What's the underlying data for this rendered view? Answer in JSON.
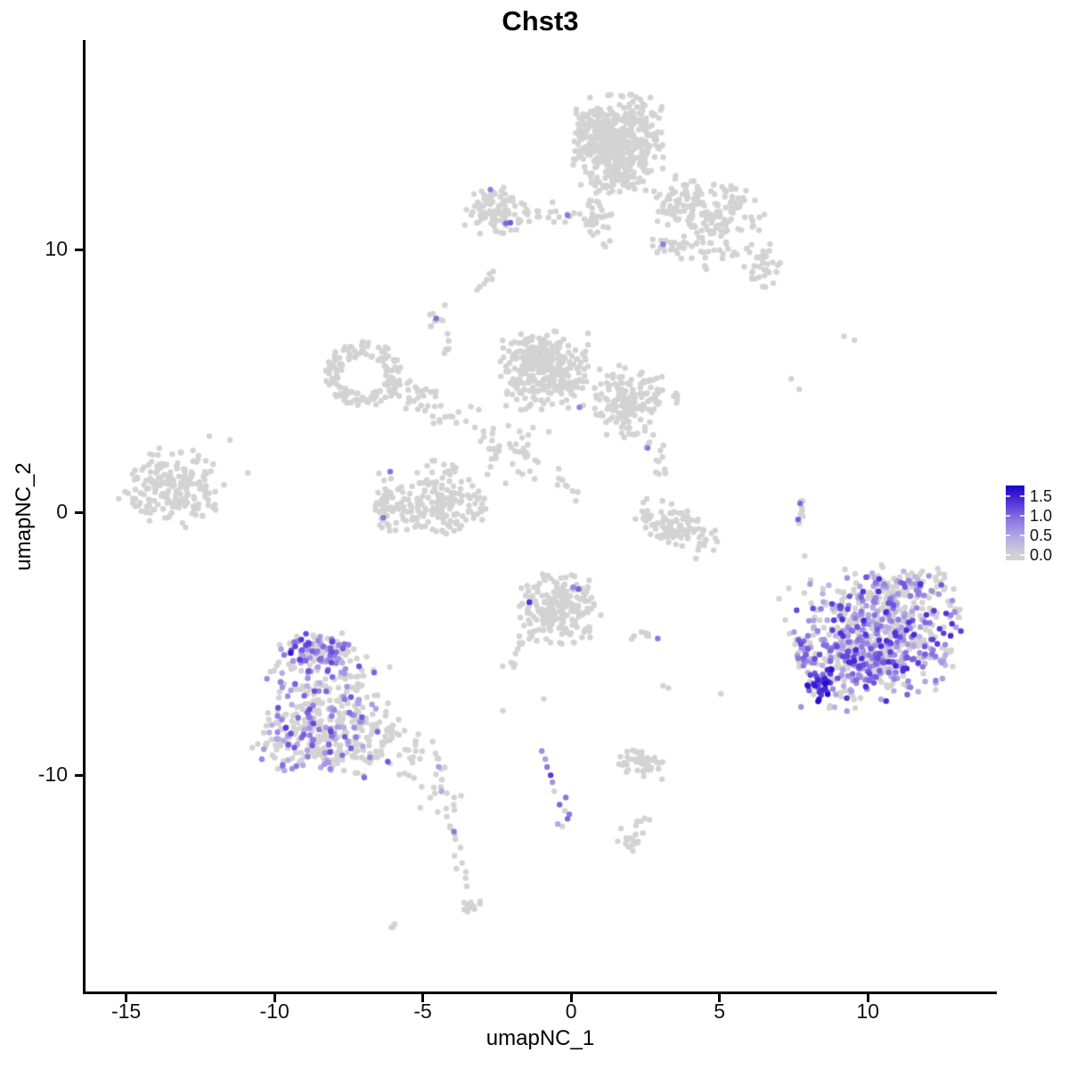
{
  "chart_data": {
    "type": "scatter",
    "title": "Chst3",
    "xlabel": "umapNC_1",
    "ylabel": "umapNC_2",
    "xlim": [
      -16.4,
      14.32
    ],
    "ylim": [
      -18.3,
      17.97
    ],
    "xticks": [
      -15,
      -10,
      -5,
      0,
      5,
      10
    ],
    "yticks": [
      -10,
      0,
      10
    ],
    "grid": false,
    "point_radius_px": 3.2,
    "seed": 7,
    "color_scale": {
      "zero_color": "#D3D3D3",
      "domain_max": 1.8,
      "stops": [
        {
          "t": 0.0,
          "c": "#D3D3D3"
        },
        {
          "t": 0.25,
          "c": "#B2A8E6"
        },
        {
          "t": 0.5,
          "c": "#8C78E0"
        },
        {
          "t": 0.75,
          "c": "#5331DA"
        },
        {
          "t": 1.0,
          "c": "#1400C8"
        }
      ]
    },
    "legend": {
      "ticks": [
        1.5,
        1.0,
        0.5,
        0.0
      ],
      "bar_range": [
        -0.14,
        1.77
      ]
    },
    "clusters": [
      {
        "name": "top-main",
        "cx": 1.62,
        "cy": 14.0,
        "rx": 1.55,
        "ry": 1.9,
        "rot": 0,
        "n": 430
      },
      {
        "name": "top-main-left",
        "cx": 0.9,
        "cy": 14.4,
        "rx": 0.8,
        "ry": 1.1,
        "rot": 0,
        "n": 80
      },
      {
        "name": "top-neck",
        "cx": 0.95,
        "cy": 11.3,
        "rx": 0.5,
        "ry": 1.2,
        "rot": 0,
        "n": 40
      },
      {
        "name": "top-right-arm",
        "cx": 4.6,
        "cy": 11.5,
        "rx": 1.95,
        "ry": 1.15,
        "rot": -15,
        "n": 165
      },
      {
        "name": "top-arm-tip",
        "cx": 6.4,
        "cy": 9.4,
        "rx": 0.65,
        "ry": 0.9,
        "rot": 0,
        "n": 35
      },
      {
        "name": "top-arm-under",
        "cx": 4.3,
        "cy": 10.1,
        "rx": 1.4,
        "ry": 0.8,
        "rot": -10,
        "n": 40
      },
      {
        "name": "topleft-small",
        "cx": -2.5,
        "cy": 11.5,
        "rx": 1.2,
        "ry": 0.95,
        "rot": 0,
        "n": 95
      },
      {
        "name": "topleft-y-clump",
        "cx": 3.05,
        "cy": 10.1,
        "rx": 0.45,
        "ry": 0.35,
        "rot": 0,
        "n": 10
      },
      {
        "name": "mid-tiny-clump",
        "cx": -4.55,
        "cy": 7.4,
        "rx": 0.35,
        "ry": 0.5,
        "rot": 0,
        "n": 9
      },
      {
        "name": "mid-tiny-strip",
        "cx": -4.25,
        "cy": 6.3,
        "rx": 0.18,
        "ry": 0.5,
        "rot": 0,
        "n": 6
      },
      {
        "name": "mid-left-ring",
        "cx": -7.0,
        "cy": 5.25,
        "rx": 1.35,
        "ry": 1.25,
        "rot": 0,
        "n": 140,
        "ring": 1
      },
      {
        "name": "mid-center",
        "cx": -0.85,
        "cy": 5.4,
        "rx": 1.6,
        "ry": 1.5,
        "rot": 0,
        "n": 260
      },
      {
        "name": "mid-center-top",
        "cx": -1.1,
        "cy": 6.1,
        "rx": 0.9,
        "ry": 0.7,
        "rot": 0,
        "n": 70
      },
      {
        "name": "mid-right-lobe",
        "cx": 2.0,
        "cy": 4.2,
        "rx": 1.25,
        "ry": 1.4,
        "rot": 0,
        "n": 165
      },
      {
        "name": "mid-scatter",
        "cx": -1.9,
        "cy": 2.2,
        "rx": 1.4,
        "ry": 1.3,
        "rot": 0,
        "n": 26
      },
      {
        "name": "mid-bowl",
        "cx": -4.6,
        "cy": 0.2,
        "rx": 1.8,
        "ry": 1.1,
        "rot": 5,
        "n": 165
      },
      {
        "name": "mid-bowl-hook",
        "cx": -6.3,
        "cy": 0.45,
        "rx": 0.35,
        "ry": 1.2,
        "rot": 0,
        "n": 38
      },
      {
        "name": "mid-bowl-inner",
        "cx": -4.3,
        "cy": 1.6,
        "rx": 1.0,
        "ry": 0.7,
        "rot": 0,
        "n": 18
      },
      {
        "name": "mid-crescent-se",
        "cx": 3.6,
        "cy": -0.6,
        "rx": 1.55,
        "ry": 0.75,
        "rot": -30,
        "n": 105
      },
      {
        "name": "mid-right-dots",
        "cx": 3.3,
        "cy": 4.3,
        "rx": 0.6,
        "ry": 0.5,
        "rot": 0,
        "n": 9
      },
      {
        "name": "far-left",
        "cx": -13.5,
        "cy": 1.0,
        "rx": 1.75,
        "ry": 1.5,
        "rot": -10,
        "n": 200
      },
      {
        "name": "bottom-middle",
        "cx": -0.35,
        "cy": -3.65,
        "rx": 1.4,
        "ry": 1.45,
        "rot": 0,
        "n": 205
      },
      {
        "name": "bottom-mid-pair",
        "cx": 2.35,
        "cy": -4.75,
        "rx": 0.5,
        "ry": 0.22,
        "rot": 0,
        "n": 7
      },
      {
        "name": "purple-left-core",
        "cx": -8.25,
        "cy": -7.4,
        "rx": 2.2,
        "ry": 2.6,
        "rot": 0,
        "n": 320,
        "frac": 0.3,
        "vmin": 0.35,
        "vmax": 1.25
      },
      {
        "name": "purple-left-base",
        "cx": -8.3,
        "cy": -8.8,
        "rx": 2.5,
        "ry": 1.3,
        "rot": 0,
        "n": 140,
        "frac": 0.18,
        "vmin": 0.35,
        "vmax": 1.1
      },
      {
        "name": "purple-left-cap",
        "cx": -8.55,
        "cy": -5.3,
        "rx": 1.35,
        "ry": 0.8,
        "rot": 0,
        "n": 95,
        "frac": 0.55,
        "vmin": 0.5,
        "vmax": 1.3
      },
      {
        "name": "right-expr-core",
        "cx": 10.35,
        "cy": -4.6,
        "rx": 2.9,
        "ry": 2.65,
        "rot": 15,
        "n": 620,
        "frac": 0.52,
        "vmin": 0.3,
        "vmax": 1.45
      },
      {
        "name": "right-expr-dense",
        "cx": 9.6,
        "cy": -5.6,
        "rx": 1.2,
        "ry": 1.0,
        "rot": 0,
        "n": 90,
        "frac": 0.6,
        "vmin": 0.5,
        "vmax": 1.45
      },
      {
        "name": "right-expr-rim",
        "cx": 11.4,
        "cy": -2.8,
        "rx": 1.5,
        "ry": 0.65,
        "rot": 10,
        "n": 65,
        "frac": 0.18,
        "vmin": 0.3,
        "vmax": 0.9
      },
      {
        "name": "right-expr-dark",
        "cx": 8.45,
        "cy": -6.6,
        "rx": 0.6,
        "ry": 0.65,
        "rot": 0,
        "n": 30,
        "frac": 0.85,
        "vmin": 1.05,
        "vmax": 1.75
      },
      {
        "name": "right-expr-spur",
        "cx": 7.95,
        "cy": -5.3,
        "rx": 0.45,
        "ry": 0.75,
        "rot": 0,
        "n": 24,
        "frac": 0.5,
        "vmin": 0.4,
        "vmax": 1.2
      },
      {
        "name": "bottom-right-small",
        "cx": 2.3,
        "cy": -9.55,
        "rx": 0.9,
        "ry": 0.55,
        "rot": -5,
        "n": 50
      },
      {
        "name": "bottom-right-low",
        "cx": 2.05,
        "cy": -12.45,
        "rx": 0.5,
        "ry": 0.45,
        "rot": 0,
        "n": 16
      },
      {
        "name": "drip-end-blob",
        "cx": -3.45,
        "cy": -14.95,
        "rx": 0.4,
        "ry": 0.3,
        "rot": 0,
        "n": 14
      }
    ],
    "strands": [
      {
        "name": "topleft-bridge",
        "x1": -1.55,
        "y1": 11.45,
        "x2": 0.4,
        "y2": 11.25,
        "n": 18,
        "jit": 0.15
      },
      {
        "name": "mid-mini-diag",
        "x1": -3.15,
        "y1": 8.6,
        "x2": -2.6,
        "y2": 9.2,
        "n": 7,
        "jit": 0.1
      },
      {
        "name": "ring-to-center",
        "x1": -5.8,
        "y1": 4.2,
        "x2": -3.4,
        "y2": 3.6,
        "n": 26,
        "jit": 0.22
      },
      {
        "name": "ring-arch",
        "x1": -5.6,
        "y1": 4.85,
        "x2": -4.35,
        "y2": 4.4,
        "n": 13,
        "jit": 0.12
      },
      {
        "name": "v-strand-a",
        "x1": -3.2,
        "y1": 3.3,
        "x2": -2.4,
        "y2": 2.2,
        "n": 9,
        "jit": 0.15
      },
      {
        "name": "v-strand-b",
        "x1": -1.85,
        "y1": 2.9,
        "x2": -1.3,
        "y2": 1.2,
        "n": 11,
        "jit": 0.15
      },
      {
        "name": "v-strand-c",
        "x1": -0.6,
        "y1": 1.6,
        "x2": 0.15,
        "y2": 0.55,
        "n": 9,
        "jit": 0.12
      },
      {
        "name": "lobe-down-hook",
        "x1": 2.6,
        "y1": 2.7,
        "x2": 3.3,
        "y2": 1.15,
        "n": 13,
        "jit": 0.2
      },
      {
        "name": "right-strand",
        "x1": 7.72,
        "y1": 0.45,
        "x2": 7.65,
        "y2": -0.5,
        "n": 9,
        "jit": 0.07
      },
      {
        "name": "bottom-mid-tail",
        "x1": -1.5,
        "y1": -4.6,
        "x2": -2.1,
        "y2": -5.95,
        "n": 12,
        "jit": 0.12
      },
      {
        "name": "purple-tail-band",
        "x1": -6.4,
        "y1": -8.3,
        "x2": -4.0,
        "y2": -10.8,
        "n": 55,
        "jit": 0.38,
        "frac": 0.05,
        "vmin": 0.4,
        "vmax": 0.95
      },
      {
        "name": "drip-strand",
        "x1": -4.15,
        "y1": -11.1,
        "x2": -3.55,
        "y2": -14.3,
        "n": 13,
        "jit": 0.12
      },
      {
        "name": "bottom-pair",
        "x1": -6.15,
        "y1": -15.9,
        "x2": -5.88,
        "y2": -15.62,
        "n": 3,
        "jit": 0.04
      },
      {
        "name": "low-blob-arm",
        "x1": 2.15,
        "y1": -11.9,
        "x2": 2.6,
        "y2": -11.6,
        "n": 5,
        "jit": 0.08
      }
    ],
    "points": [
      [
        -2.72,
        12.28,
        0.85
      ],
      [
        -2.2,
        11.0,
        1.0
      ],
      [
        -2.05,
        11.02,
        1.1
      ],
      [
        -0.12,
        11.3,
        0.9
      ],
      [
        3.1,
        10.2,
        0.85
      ],
      [
        -4.55,
        7.38,
        0.95
      ],
      [
        0.28,
        4.0,
        0.8
      ],
      [
        2.58,
        2.45,
        0.9
      ],
      [
        -6.1,
        1.55,
        0.95
      ],
      [
        -6.33,
        -0.2,
        0.9
      ],
      [
        7.72,
        0.34,
        1.0
      ],
      [
        7.65,
        -0.27,
        1.05
      ],
      [
        0.07,
        -2.85,
        0.75
      ],
      [
        0.25,
        -2.92,
        1.05
      ],
      [
        -1.41,
        -3.42,
        1.35
      ],
      [
        2.92,
        -4.8,
        0.9
      ],
      [
        -9.45,
        -5.35,
        1.6
      ],
      [
        -9.3,
        -5.1,
        1.25
      ],
      [
        -9.62,
        -8.2,
        1.3
      ],
      [
        -3.95,
        -12.15,
        0.9
      ],
      [
        7.75,
        -7.4,
        0.65
      ],
      [
        -0.99,
        -9.08,
        0.7
      ],
      [
        -0.87,
        -9.39,
        0.55
      ],
      [
        -0.81,
        -9.69,
        0.9
      ],
      [
        -0.69,
        -10.0,
        1.3
      ],
      [
        -0.63,
        -10.27,
        0.65
      ],
      [
        -0.57,
        -10.61,
        0
      ],
      [
        -0.18,
        -10.85,
        0.9
      ],
      [
        -0.39,
        -11.12,
        1.0
      ],
      [
        -0.21,
        -11.36,
        0
      ],
      [
        -0.06,
        -11.49,
        0.9
      ],
      [
        -0.12,
        -11.66,
        1.0
      ],
      [
        -0.45,
        -11.86,
        0.45
      ],
      [
        -0.3,
        -11.95,
        0
      ],
      [
        9.2,
        6.7,
        0
      ],
      [
        9.55,
        6.55,
        0
      ],
      [
        7.42,
        5.08,
        0
      ],
      [
        7.69,
        4.68,
        0
      ],
      [
        7.87,
        -1.66,
        0
      ],
      [
        5.05,
        -6.9,
        0
      ],
      [
        3.1,
        -6.6,
        0
      ],
      [
        3.28,
        -6.68,
        0
      ],
      [
        -2.3,
        -7.55,
        0
      ],
      [
        -0.92,
        -7.1,
        0
      ],
      [
        1.68,
        -12.03,
        0
      ],
      [
        -11.5,
        2.75,
        0
      ],
      [
        -12.2,
        2.9,
        0
      ],
      [
        -10.9,
        1.5,
        0
      ],
      [
        -11.7,
        1.05,
        0
      ]
    ]
  }
}
